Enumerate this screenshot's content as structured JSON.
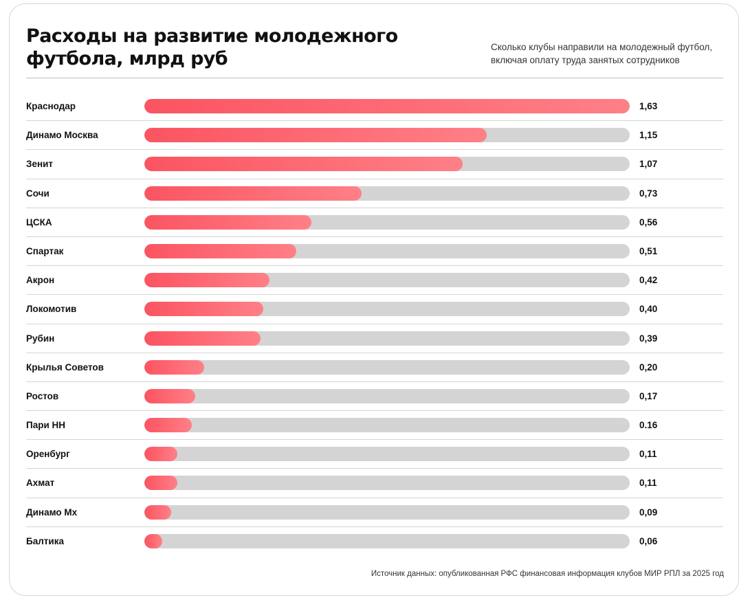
{
  "header": {
    "title": "Расходы на развитие молодежного футбола, млрд руб",
    "subtitle": "Сколько клубы направили на молодежный футбол, включая оплату труда занятых сотрудников"
  },
  "footer": {
    "source": "Источник данных: опубликованная РФС финансовая информация клубов МИР РПЛ за 2025 год"
  },
  "colors": {
    "bar_start": "#fb5461",
    "bar_end": "#ff8087",
    "track": "#d4d4d4"
  },
  "chart_data": {
    "type": "bar",
    "orientation": "horizontal",
    "title": "Расходы на развитие молодежного футбола, млрд руб",
    "subtitle": "Сколько клубы направили на молодежный футбол, включая оплату труда занятых сотрудников",
    "xlim": [
      0,
      1.63
    ],
    "grid": false,
    "categories": [
      "Краснодар",
      "Динамо Москва",
      "Зенит",
      "Сочи",
      "ЦСКА",
      "Спартак",
      "Акрон",
      "Локомотив",
      "Рубин",
      "Крылья Советов",
      "Ростов",
      "Пари НН",
      "Оренбург",
      "Ахмат",
      "Динамо Мх",
      "Балтика"
    ],
    "values": [
      1.63,
      1.15,
      1.07,
      0.73,
      0.56,
      0.51,
      0.42,
      0.4,
      0.39,
      0.2,
      0.17,
      0.16,
      0.11,
      0.11,
      0.09,
      0.06
    ],
    "value_labels": [
      "1,63",
      "1,15",
      "1,07",
      "0,73",
      "0,56",
      "0,51",
      "0,42",
      "0,40",
      "0,39",
      "0,20",
      "0,17",
      "0.16",
      "0,11",
      "0,11",
      "0,09",
      "0,06"
    ]
  }
}
